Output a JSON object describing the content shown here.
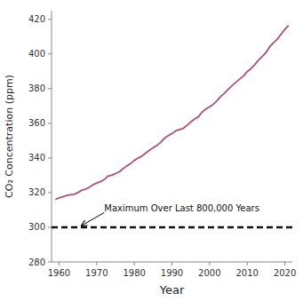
{
  "chart_data": {
    "type": "line",
    "xlabel": "Year",
    "ylabel": "CO₂ Concentration (ppm)",
    "xlim": [
      1958,
      2022
    ],
    "ylim": [
      280,
      425
    ],
    "xticks": [
      1960,
      1970,
      1980,
      1990,
      2000,
      2010,
      2020
    ],
    "yticks": [
      280,
      300,
      320,
      340,
      360,
      380,
      400,
      420
    ],
    "grid": false,
    "color": "#b05070",
    "x": [
      1959,
      1960,
      1961,
      1962,
      1963,
      1964,
      1965,
      1966,
      1967,
      1968,
      1969,
      1970,
      1971,
      1972,
      1973,
      1974,
      1975,
      1976,
      1977,
      1978,
      1979,
      1980,
      1981,
      1982,
      1983,
      1984,
      1985,
      1986,
      1987,
      1988,
      1989,
      1990,
      1991,
      1992,
      1993,
      1994,
      1995,
      1996,
      1997,
      1998,
      1999,
      2000,
      2001,
      2002,
      2003,
      2004,
      2005,
      2006,
      2007,
      2008,
      2009,
      2010,
      2011,
      2012,
      2013,
      2014,
      2015,
      2016,
      2017,
      2018,
      2019,
      2020,
      2021
    ],
    "values": [
      316.0,
      317.0,
      317.6,
      318.4,
      318.8,
      319.0,
      320.0,
      321.3,
      322.0,
      323.0,
      324.5,
      325.5,
      326.3,
      327.5,
      329.5,
      330.0,
      331.0,
      332.0,
      333.8,
      335.4,
      336.7,
      338.6,
      339.9,
      341.1,
      342.8,
      344.4,
      345.9,
      347.2,
      349.0,
      351.4,
      352.9,
      354.1,
      355.6,
      356.4,
      357.1,
      358.8,
      360.8,
      362.5,
      363.7,
      366.5,
      368.2,
      369.5,
      371.0,
      373.1,
      375.6,
      377.4,
      379.7,
      381.8,
      383.7,
      385.5,
      387.3,
      389.8,
      391.6,
      393.8,
      396.5,
      398.6,
      400.8,
      404.2,
      406.5,
      408.5,
      411.4,
      414.2,
      416.5
    ],
    "reference_line": {
      "value": 300,
      "color": "#111111",
      "line_style": "dashed"
    },
    "annotations": [
      {
        "text": "Maximum Over Last 800,000 Years",
        "x": 1966,
        "y": 301.0,
        "text_x": 1972,
        "text_y": 309
      }
    ]
  }
}
